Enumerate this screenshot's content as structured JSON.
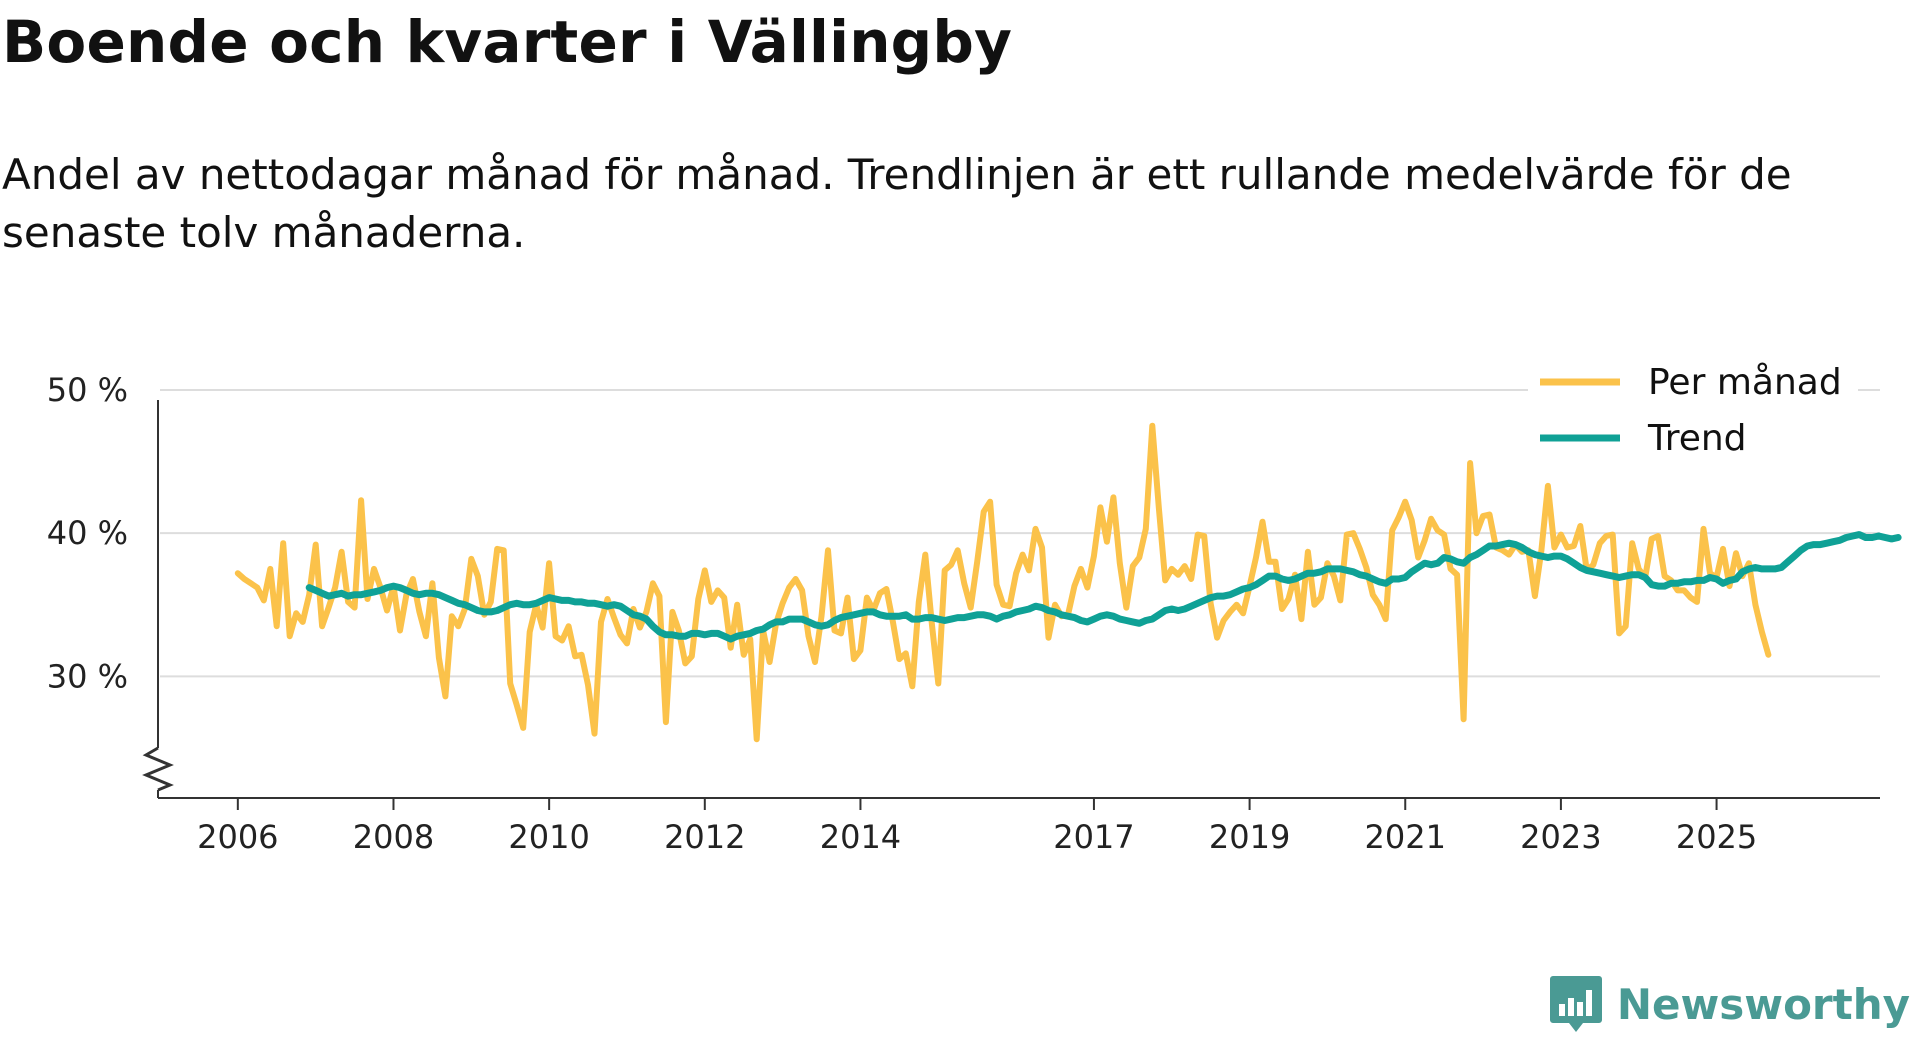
{
  "chart_data": {
    "type": "line",
    "title": "Boende och kvarter i Vällingby",
    "subtitle": "Andel av nettodagar månad för månad. Trendlinjen är ett rullande medelvärde för de senaste tolv månaderna.",
    "xlabel": "",
    "ylabel": "",
    "ylim": [
      21.5,
      50
    ],
    "y_ticks": [
      30,
      40,
      50
    ],
    "y_tick_labels": [
      "30 %",
      "40 %",
      "50 %"
    ],
    "x_ticks": [
      2006,
      2008,
      2010,
      2012,
      2014,
      2017,
      2019,
      2021,
      2023,
      2025
    ],
    "x_tick_labels": [
      "2006",
      "2008",
      "2010",
      "2012",
      "2014",
      "2017",
      "2019",
      "2021",
      "2023",
      "2025"
    ],
    "x_range": [
      2005.0,
      2027.1
    ],
    "legend": "top-right",
    "legend_entries": [
      "Per månad",
      "Trend"
    ],
    "colors": {
      "monthly": "#fbc24a",
      "trend": "#0fa196",
      "grid": "#dddddd",
      "axis": "#333333"
    },
    "series": [
      {
        "name": "Per månad",
        "x_start": 2006.0,
        "step": 0.08333,
        "values": [
          37.2,
          36.8,
          36.5,
          36.2,
          35.3,
          37.5,
          33.5,
          39.3,
          32.8,
          34.4,
          33.8,
          35.7,
          39.2,
          33.5,
          34.8,
          36.2,
          38.7,
          35.2,
          34.8,
          42.3,
          35.4,
          37.5,
          36.2,
          34.6,
          36.3,
          33.2,
          35.7,
          36.8,
          34.5,
          32.8,
          36.5,
          31.3,
          28.6,
          34.2,
          33.5,
          34.7,
          38.2,
          37.0,
          34.3,
          35.2,
          38.9,
          38.8,
          29.5,
          28.0,
          26.4,
          33.1,
          35.0,
          33.4,
          37.9,
          32.8,
          32.5,
          33.5,
          31.4,
          31.5,
          29.4,
          26.0,
          33.8,
          35.4,
          34.1,
          32.9,
          32.3,
          34.7,
          33.4,
          34.5,
          36.5,
          35.6,
          26.8,
          34.5,
          33.2,
          30.9,
          31.4,
          35.4,
          37.4,
          35.2,
          36.0,
          35.5,
          32.0,
          35.0,
          31.5,
          32.6,
          25.6,
          33.2,
          31.0,
          33.7,
          35.1,
          36.2,
          36.8,
          36.0,
          32.8,
          31.0,
          34.2,
          38.8,
          33.2,
          33.0,
          35.5,
          31.2,
          31.8,
          35.5,
          34.6,
          35.8,
          36.1,
          33.8,
          31.2,
          31.6,
          29.3,
          35.2,
          38.5,
          33.7,
          29.5,
          37.4,
          37.8,
          38.8,
          36.5,
          34.8,
          38.0,
          41.5,
          42.2,
          36.4,
          35.0,
          34.9,
          37.2,
          38.5,
          37.4,
          40.3,
          39.0,
          32.7,
          35.0,
          34.2,
          34.3,
          36.3,
          37.5,
          36.2,
          38.4,
          41.8,
          39.4,
          42.5,
          37.9,
          34.8,
          37.7,
          38.3,
          40.3,
          47.5,
          41.8,
          36.7,
          37.5,
          37.1,
          37.7,
          36.8,
          39.9,
          39.8,
          35.1,
          32.7,
          33.9,
          34.5,
          35.0,
          34.4,
          36.3,
          38.3,
          40.8,
          38.0,
          38.0,
          34.7,
          35.4,
          37.1,
          34.0,
          38.7,
          35.0,
          35.5,
          37.9,
          37.0,
          35.3,
          39.9,
          40.0,
          38.9,
          37.6,
          35.7,
          35.0,
          34.0,
          40.2,
          41.1,
          42.2,
          40.9,
          38.3,
          39.5,
          41.0,
          40.2,
          39.9,
          37.5,
          37.1,
          27.0,
          44.9,
          40.0,
          41.2,
          41.3,
          39.0,
          38.8,
          38.5,
          39.2,
          38.7,
          38.8,
          35.6,
          38.8,
          43.3,
          39.0,
          39.9,
          39.0,
          39.1,
          40.5,
          37.4,
          37.8,
          39.3,
          39.8,
          39.9,
          33.0,
          33.5,
          39.3,
          37.5,
          36.9,
          39.6,
          39.8,
          37.0,
          36.7,
          36.0,
          36.0,
          35.5,
          35.2,
          40.3,
          37.2,
          36.9,
          38.9,
          36.3,
          38.6,
          37.0,
          37.9,
          35.0,
          33.1,
          31.5
        ]
      },
      {
        "name": "Trend",
        "x_start": 2006.917,
        "step": 0.08333,
        "values": [
          36.2,
          36.0,
          35.8,
          35.6,
          35.7,
          35.8,
          35.6,
          35.7,
          35.7,
          35.8,
          35.9,
          36.0,
          36.2,
          36.3,
          36.2,
          36.0,
          35.8,
          35.7,
          35.8,
          35.8,
          35.7,
          35.5,
          35.3,
          35.1,
          35.0,
          34.8,
          34.6,
          34.5,
          34.5,
          34.6,
          34.8,
          35.0,
          35.1,
          35.0,
          35.0,
          35.1,
          35.3,
          35.5,
          35.4,
          35.3,
          35.3,
          35.2,
          35.2,
          35.1,
          35.1,
          35.0,
          34.9,
          35.0,
          34.9,
          34.6,
          34.3,
          34.2,
          34.0,
          33.5,
          33.1,
          32.9,
          32.9,
          32.8,
          32.8,
          33.0,
          33.0,
          32.9,
          33.0,
          33.0,
          32.8,
          32.6,
          32.8,
          32.9,
          33.0,
          33.2,
          33.3,
          33.6,
          33.8,
          33.8,
          34.0,
          34.0,
          34.0,
          33.8,
          33.6,
          33.5,
          33.6,
          33.9,
          34.1,
          34.2,
          34.3,
          34.4,
          34.5,
          34.5,
          34.3,
          34.2,
          34.2,
          34.2,
          34.3,
          34.0,
          34.0,
          34.1,
          34.1,
          34.0,
          33.9,
          34.0,
          34.1,
          34.1,
          34.2,
          34.3,
          34.3,
          34.2,
          34.0,
          34.2,
          34.3,
          34.5,
          34.6,
          34.7,
          34.9,
          34.8,
          34.6,
          34.5,
          34.3,
          34.2,
          34.1,
          33.9,
          33.8,
          34.0,
          34.2,
          34.3,
          34.2,
          34.0,
          33.9,
          33.8,
          33.7,
          33.9,
          34.0,
          34.3,
          34.6,
          34.7,
          34.6,
          34.7,
          34.9,
          35.1,
          35.3,
          35.5,
          35.6,
          35.6,
          35.7,
          35.9,
          36.1,
          36.2,
          36.4,
          36.7,
          37.0,
          37.0,
          36.8,
          36.7,
          36.8,
          37.0,
          37.2,
          37.2,
          37.3,
          37.5,
          37.5,
          37.5,
          37.4,
          37.3,
          37.1,
          37.0,
          36.8,
          36.6,
          36.5,
          36.8,
          36.8,
          36.9,
          37.3,
          37.6,
          37.9,
          37.8,
          37.9,
          38.3,
          38.2,
          38.0,
          37.9,
          38.3,
          38.5,
          38.8,
          39.1,
          39.1,
          39.2,
          39.3,
          39.2,
          39.0,
          38.7,
          38.5,
          38.4,
          38.3,
          38.4,
          38.4,
          38.2,
          37.9,
          37.6,
          37.4,
          37.3,
          37.2,
          37.1,
          37.0,
          36.9,
          37.0,
          37.1,
          37.1,
          36.9,
          36.4,
          36.3,
          36.3,
          36.5,
          36.5,
          36.6,
          36.6,
          36.7,
          36.7,
          36.9,
          36.8,
          36.5,
          36.7,
          36.8,
          37.3,
          37.5,
          37.6,
          37.5,
          37.5,
          37.5,
          37.6,
          38.0,
          38.4,
          38.8,
          39.1,
          39.2,
          39.2,
          39.3,
          39.4,
          39.5,
          39.7,
          39.8,
          39.9,
          39.7,
          39.7,
          39.8,
          39.7,
          39.6,
          39.7
        ]
      }
    ]
  },
  "logo": {
    "name": "Newsworthy",
    "color": "#4a9a94"
  }
}
